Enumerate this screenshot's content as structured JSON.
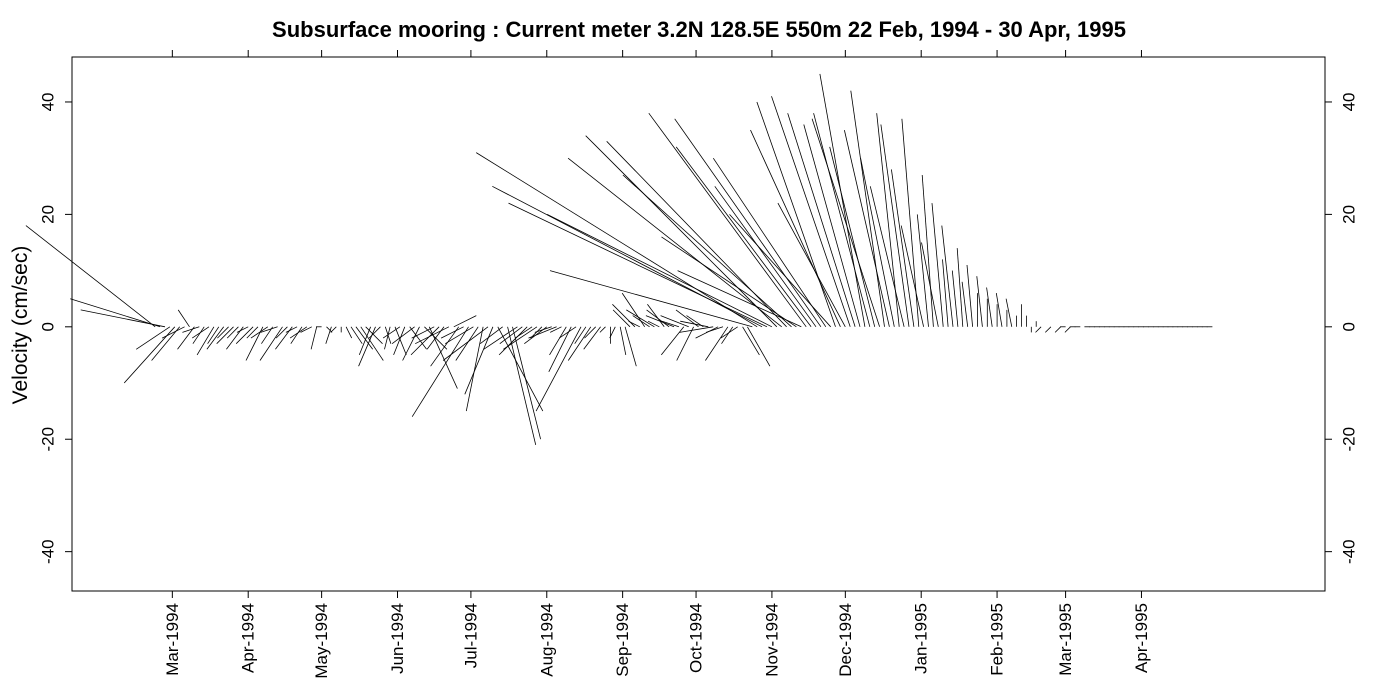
{
  "chart_data": {
    "type": "stick",
    "title": "Subsurface mooring : Current meter  3.2N 128.5E    550m  22 Feb, 1994 - 30 Apr, 1995",
    "ylabel": "Velocity (cm/sec)",
    "xlabel": "",
    "ylim": [
      -47,
      48
    ],
    "xlim": [
      "1994-01-19",
      "1995-06-15"
    ],
    "grid": false,
    "legend": "none",
    "y_ticks": [
      -40,
      -20,
      0,
      20,
      40
    ],
    "y_tick_labels": [
      "-40",
      "-20",
      "0",
      "20",
      "40"
    ],
    "x_ticks": [
      "1994-03-01",
      "1994-04-01",
      "1994-05-01",
      "1994-06-01",
      "1994-07-01",
      "1994-08-01",
      "1994-09-01",
      "1994-10-01",
      "1994-11-01",
      "1994-12-01",
      "1995-01-01",
      "1995-02-01",
      "1995-03-01",
      "1995-04-01"
    ],
    "x_tick_labels": [
      "Mar-1994",
      "Apr-1994",
      "May-1994",
      "Jun-1994",
      "Jul-1994",
      "Aug-1994",
      "Sep-1994",
      "Oct-1994",
      "Nov-1994",
      "Dec-1994",
      "Jan-1995",
      "Feb-1995",
      "Mar-1995",
      "Apr-1995"
    ],
    "x_label_angle": -90,
    "color": "#000000",
    "vectors": [
      {
        "date": "1994-02-22",
        "u": -23,
        "v": 18
      },
      {
        "date": "1994-02-24",
        "u": -16,
        "v": 5
      },
      {
        "date": "1994-02-26",
        "u": -15,
        "v": 3
      },
      {
        "date": "1994-02-28",
        "u": -6,
        "v": -4
      },
      {
        "date": "1994-03-02",
        "u": -9,
        "v": -10
      },
      {
        "date": "1994-03-04",
        "u": -5,
        "v": -6
      },
      {
        "date": "1994-03-06",
        "u": -4,
        "v": -2
      },
      {
        "date": "1994-03-08",
        "u": -2,
        "v": 3
      },
      {
        "date": "1994-03-10",
        "u": -3,
        "v": -4
      },
      {
        "date": "1994-03-12",
        "u": -3,
        "v": -1
      },
      {
        "date": "1994-03-14",
        "u": -2,
        "v": -3
      },
      {
        "date": "1994-03-16",
        "u": -3,
        "v": -2
      },
      {
        "date": "1994-03-18",
        "u": -3,
        "v": -5
      },
      {
        "date": "1994-03-20",
        "u": -2,
        "v": -3
      },
      {
        "date": "1994-03-22",
        "u": -3,
        "v": -4
      },
      {
        "date": "1994-03-24",
        "u": -2,
        "v": -2
      },
      {
        "date": "1994-03-26",
        "u": -3,
        "v": -3
      },
      {
        "date": "1994-03-28",
        "u": -2,
        "v": -2
      },
      {
        "date": "1994-03-30",
        "u": -3,
        "v": -4
      },
      {
        "date": "1994-04-01",
        "u": -2,
        "v": -1
      },
      {
        "date": "1994-04-03",
        "u": -3,
        "v": -3
      },
      {
        "date": "1994-04-05",
        "u": -2,
        "v": -2
      },
      {
        "date": "1994-04-07",
        "u": -3,
        "v": -6
      },
      {
        "date": "1994-04-09",
        "u": -3,
        "v": -2
      },
      {
        "date": "1994-04-11",
        "u": -2,
        "v": -3
      },
      {
        "date": "1994-04-13",
        "u": -3,
        "v": -1
      },
      {
        "date": "1994-04-15",
        "u": -4,
        "v": -6
      },
      {
        "date": "1994-04-17",
        "u": -2,
        "v": -2
      },
      {
        "date": "1994-04-19",
        "u": -3,
        "v": -4
      },
      {
        "date": "1994-04-21",
        "u": -2,
        "v": -1
      },
      {
        "date": "1994-04-23",
        "u": -2,
        "v": -3
      },
      {
        "date": "1994-04-25",
        "u": -3,
        "v": -2
      },
      {
        "date": "1994-04-27",
        "u": -2,
        "v": -1
      },
      {
        "date": "1994-04-29",
        "u": -1,
        "v": -4
      },
      {
        "date": "1994-05-01",
        "u": -1,
        "v": 0
      },
      {
        "date": "1994-05-03",
        "u": 1,
        "v": -1
      },
      {
        "date": "1994-05-05",
        "u": -1,
        "v": -3
      },
      {
        "date": "1994-05-07",
        "u": -1,
        "v": -1
      },
      {
        "date": "1994-05-09",
        "u": 0,
        "v": -1
      },
      {
        "date": "1994-05-11",
        "u": 1,
        "v": -2
      },
      {
        "date": "1994-05-13",
        "u": 2,
        "v": -3
      },
      {
        "date": "1994-05-15",
        "u": 3,
        "v": -4
      },
      {
        "date": "1994-05-17",
        "u": 4,
        "v": -6
      },
      {
        "date": "1994-05-19",
        "u": 3,
        "v": -3
      },
      {
        "date": "1994-05-21",
        "u": -2,
        "v": -5
      },
      {
        "date": "1994-05-23",
        "u": -3,
        "v": -7
      },
      {
        "date": "1994-05-25",
        "u": -2,
        "v": -2
      },
      {
        "date": "1994-05-27",
        "u": 1,
        "v": -3
      },
      {
        "date": "1994-05-29",
        "u": -1,
        "v": -4
      },
      {
        "date": "1994-05-31",
        "u": 2,
        "v": -5
      },
      {
        "date": "1994-06-02",
        "u": -3,
        "v": -2
      },
      {
        "date": "1994-06-04",
        "u": -2,
        "v": -5
      },
      {
        "date": "1994-06-06",
        "u": 3,
        "v": -4
      },
      {
        "date": "1994-06-08",
        "u": -4,
        "v": -3
      },
      {
        "date": "1994-06-10",
        "u": -3,
        "v": -6
      },
      {
        "date": "1994-06-12",
        "u": 4,
        "v": -4
      },
      {
        "date": "1994-06-14",
        "u": 5,
        "v": -11
      },
      {
        "date": "1994-06-16",
        "u": -4,
        "v": -2
      },
      {
        "date": "1994-06-18",
        "u": -5,
        "v": -5
      },
      {
        "date": "1994-06-20",
        "u": -3,
        "v": -4
      },
      {
        "date": "1994-06-22",
        "u": -6,
        "v": -3
      },
      {
        "date": "1994-06-24",
        "u": 4,
        "v": 2
      },
      {
        "date": "1994-06-26",
        "u": -5,
        "v": -7
      },
      {
        "date": "1994-06-28",
        "u": -4,
        "v": -2
      },
      {
        "date": "1994-06-30",
        "u": -10,
        "v": -16
      },
      {
        "date": "1994-07-02",
        "u": -5,
        "v": -3
      },
      {
        "date": "1994-07-04",
        "u": -4,
        "v": -6
      },
      {
        "date": "1994-07-06",
        "u": -3,
        "v": -15
      },
      {
        "date": "1994-07-08",
        "u": -8,
        "v": -6
      },
      {
        "date": "1994-07-10",
        "u": -5,
        "v": -12
      },
      {
        "date": "1994-07-12",
        "u": 8,
        "v": -15
      },
      {
        "date": "1994-07-14",
        "u": -4,
        "v": -3
      },
      {
        "date": "1994-07-16",
        "u": 5,
        "v": -21
      },
      {
        "date": "1994-07-18",
        "u": 5,
        "v": -20
      },
      {
        "date": "1994-07-20",
        "u": -6,
        "v": -4
      },
      {
        "date": "1994-07-22",
        "u": -4,
        "v": -3
      },
      {
        "date": "1994-07-24",
        "u": -5,
        "v": -5
      },
      {
        "date": "1994-07-26",
        "u": -3,
        "v": -2
      },
      {
        "date": "1994-07-28",
        "u": -6,
        "v": -4
      },
      {
        "date": "1994-07-30",
        "u": -2,
        "v": -2
      },
      {
        "date": "1994-08-01",
        "u": -4,
        "v": -3
      },
      {
        "date": "1994-08-03",
        "u": -3,
        "v": -1
      },
      {
        "date": "1994-08-05",
        "u": -5,
        "v": -2
      },
      {
        "date": "1994-08-07",
        "u": -2,
        "v": -1
      },
      {
        "date": "1994-08-09",
        "u": -3,
        "v": -5
      },
      {
        "date": "1994-08-11",
        "u": -4,
        "v": -8
      },
      {
        "date": "1994-08-13",
        "u": -3,
        "v": -2
      },
      {
        "date": "1994-08-15",
        "u": -8,
        "v": -15
      },
      {
        "date": "1994-08-17",
        "u": -2,
        "v": -3
      },
      {
        "date": "1994-08-19",
        "u": -4,
        "v": -6
      },
      {
        "date": "1994-08-21",
        "u": -2,
        "v": -2
      },
      {
        "date": "1994-08-23",
        "u": -3,
        "v": -4
      },
      {
        "date": "1994-08-25",
        "u": -1,
        "v": -1
      },
      {
        "date": "1994-08-27",
        "u": 0,
        "v": -3
      },
      {
        "date": "1994-08-29",
        "u": -1,
        "v": -2
      },
      {
        "date": "1994-08-31",
        "u": 1,
        "v": -5
      },
      {
        "date": "1994-09-02",
        "u": 2,
        "v": -7
      },
      {
        "date": "1994-09-04",
        "u": -3,
        "v": 3
      },
      {
        "date": "1994-09-06",
        "u": -4,
        "v": 4
      },
      {
        "date": "1994-09-08",
        "u": -2,
        "v": 1
      },
      {
        "date": "1994-09-10",
        "u": -4,
        "v": 6
      },
      {
        "date": "1994-09-12",
        "u": -3,
        "v": 2
      },
      {
        "date": "1994-09-14",
        "u": -5,
        "v": 3
      },
      {
        "date": "1994-09-16",
        "u": -2,
        "v": 1
      },
      {
        "date": "1994-09-18",
        "u": -3,
        "v": 4
      },
      {
        "date": "1994-09-20",
        "u": -4,
        "v": 3
      },
      {
        "date": "1994-09-22",
        "u": -5,
        "v": 2
      },
      {
        "date": "1994-09-24",
        "u": -3,
        "v": 1
      },
      {
        "date": "1994-09-26",
        "u": -4,
        "v": -5
      },
      {
        "date": "1994-09-28",
        "u": -5,
        "v": 2
      },
      {
        "date": "1994-09-30",
        "u": -3,
        "v": -6
      },
      {
        "date": "1994-10-02",
        "u": -4,
        "v": 3
      },
      {
        "date": "1994-10-04",
        "u": -3,
        "v": 2
      },
      {
        "date": "1994-10-06",
        "u": -5,
        "v": 1
      },
      {
        "date": "1994-10-08",
        "u": -6,
        "v": -1
      },
      {
        "date": "1994-10-10",
        "u": -4,
        "v": -2
      },
      {
        "date": "1994-10-12",
        "u": -3,
        "v": -1
      },
      {
        "date": "1994-10-14",
        "u": -4,
        "v": -6
      },
      {
        "date": "1994-10-16",
        "u": -2,
        "v": -3
      },
      {
        "date": "1994-10-18",
        "u": -3,
        "v": -2
      },
      {
        "date": "1994-10-20",
        "u": 3,
        "v": -5
      },
      {
        "date": "1994-10-22",
        "u": 4,
        "v": -7
      },
      {
        "date": "1994-10-24",
        "u": -36,
        "v": 10
      },
      {
        "date": "1994-10-26",
        "u": -50,
        "v": 31
      },
      {
        "date": "1994-10-28",
        "u": -48,
        "v": 25
      },
      {
        "date": "1994-10-30",
        "u": -46,
        "v": 22
      },
      {
        "date": "1994-11-01",
        "u": -40,
        "v": 20
      },
      {
        "date": "1994-11-03",
        "u": -34,
        "v": 34
      },
      {
        "date": "1994-11-05",
        "u": -38,
        "v": 30
      },
      {
        "date": "1994-11-07",
        "u": -32,
        "v": 33
      },
      {
        "date": "1994-11-09",
        "u": -30,
        "v": 27
      },
      {
        "date": "1994-11-11",
        "u": -24,
        "v": 16
      },
      {
        "date": "1994-11-13",
        "u": -22,
        "v": 10
      },
      {
        "date": "1994-11-15",
        "u": -28,
        "v": 38
      },
      {
        "date": "1994-11-17",
        "u": -24,
        "v": 32
      },
      {
        "date": "1994-11-19",
        "u": -18,
        "v": 25
      },
      {
        "date": "1994-11-21",
        "u": -26,
        "v": 37
      },
      {
        "date": "1994-11-23",
        "u": -20,
        "v": 30
      },
      {
        "date": "1994-11-25",
        "u": -18,
        "v": 20
      },
      {
        "date": "1994-11-27",
        "u": -14,
        "v": 40
      },
      {
        "date": "1994-11-29",
        "u": -16,
        "v": 35
      },
      {
        "date": "1994-12-01",
        "u": -12,
        "v": 22
      },
      {
        "date": "1994-12-03",
        "u": -14,
        "v": 41
      },
      {
        "date": "1994-12-05",
        "u": -12,
        "v": 38
      },
      {
        "date": "1994-12-07",
        "u": -10,
        "v": 36
      },
      {
        "date": "1994-12-09",
        "u": -8,
        "v": 45
      },
      {
        "date": "1994-12-11",
        "u": -10,
        "v": 38
      },
      {
        "date": "1994-12-13",
        "u": -8,
        "v": 32
      },
      {
        "date": "1994-12-15",
        "u": -12,
        "v": 37
      },
      {
        "date": "1994-12-17",
        "u": -6,
        "v": 42
      },
      {
        "date": "1994-12-19",
        "u": -8,
        "v": 35
      },
      {
        "date": "1994-12-21",
        "u": -6,
        "v": 30
      },
      {
        "date": "1994-12-23",
        "u": -4,
        "v": 38
      },
      {
        "date": "1994-12-25",
        "u": -6,
        "v": 25
      },
      {
        "date": "1994-12-27",
        "u": -5,
        "v": 36
      },
      {
        "date": "1994-12-29",
        "u": -4,
        "v": 28
      },
      {
        "date": "1994-12-31",
        "u": -3,
        "v": 37
      },
      {
        "date": "1995-01-02",
        "u": -4,
        "v": 18
      },
      {
        "date": "1995-01-04",
        "u": -2,
        "v": 20
      },
      {
        "date": "1995-01-06",
        "u": -2,
        "v": 27
      },
      {
        "date": "1995-01-08",
        "u": -3,
        "v": 15
      },
      {
        "date": "1995-01-10",
        "u": -2,
        "v": 22
      },
      {
        "date": "1995-01-12",
        "u": -1,
        "v": 12
      },
      {
        "date": "1995-01-14",
        "u": -2,
        "v": 18
      },
      {
        "date": "1995-01-16",
        "u": -1,
        "v": 10
      },
      {
        "date": "1995-01-18",
        "u": -1,
        "v": 14
      },
      {
        "date": "1995-01-20",
        "u": -1,
        "v": 8
      },
      {
        "date": "1995-01-22",
        "u": -1,
        "v": 11
      },
      {
        "date": "1995-01-24",
        "u": 0,
        "v": 6
      },
      {
        "date": "1995-01-26",
        "u": -1,
        "v": 9
      },
      {
        "date": "1995-01-28",
        "u": 0,
        "v": 5
      },
      {
        "date": "1995-01-30",
        "u": -1,
        "v": 7
      },
      {
        "date": "1995-02-01",
        "u": 0,
        "v": 4
      },
      {
        "date": "1995-02-03",
        "u": -1,
        "v": 6
      },
      {
        "date": "1995-02-05",
        "u": 0,
        "v": 3
      },
      {
        "date": "1995-02-07",
        "u": -1,
        "v": 5
      },
      {
        "date": "1995-02-09",
        "u": 0,
        "v": 2
      },
      {
        "date": "1995-02-11",
        "u": 0,
        "v": 4
      },
      {
        "date": "1995-02-13",
        "u": 0,
        "v": 2
      },
      {
        "date": "1995-02-15",
        "u": 0,
        "v": -1
      },
      {
        "date": "1995-02-17",
        "u": 0,
        "v": 1
      },
      {
        "date": "1995-02-19",
        "u": -1,
        "v": -1
      },
      {
        "date": "1995-02-21",
        "u": 0,
        "v": 0
      },
      {
        "date": "1995-02-23",
        "u": -1,
        "v": -1
      },
      {
        "date": "1995-02-25",
        "u": 0,
        "v": 0
      },
      {
        "date": "1995-02-27",
        "u": -1,
        "v": -1
      },
      {
        "date": "1995-03-01",
        "u": -1,
        "v": 0
      },
      {
        "date": "1995-03-03",
        "u": -1,
        "v": -1
      },
      {
        "date": "1995-03-05",
        "u": -1,
        "v": 0
      },
      {
        "date": "1995-03-07",
        "u": -1,
        "v": 0
      },
      {
        "date": "1995-03-09",
        "u": 0,
        "v": 0
      },
      {
        "date": "1995-03-11",
        "u": -1,
        "v": 0
      },
      {
        "date": "1995-03-13",
        "u": -1,
        "v": 0
      },
      {
        "date": "1995-03-15",
        "u": -1,
        "v": 0
      },
      {
        "date": "1995-03-17",
        "u": -1,
        "v": 0
      },
      {
        "date": "1995-03-19",
        "u": -1,
        "v": 0
      },
      {
        "date": "1995-03-21",
        "u": -1,
        "v": 0
      },
      {
        "date": "1995-03-23",
        "u": -1,
        "v": 0
      },
      {
        "date": "1995-03-25",
        "u": -1,
        "v": 0
      },
      {
        "date": "1995-03-27",
        "u": -1,
        "v": 0
      },
      {
        "date": "1995-03-29",
        "u": -1,
        "v": 0
      },
      {
        "date": "1995-03-31",
        "u": -1,
        "v": 0
      },
      {
        "date": "1995-04-02",
        "u": -1,
        "v": 0
      },
      {
        "date": "1995-04-04",
        "u": -1,
        "v": 0
      },
      {
        "date": "1995-04-06",
        "u": -1,
        "v": 0
      },
      {
        "date": "1995-04-08",
        "u": -1,
        "v": 0
      },
      {
        "date": "1995-04-10",
        "u": -1,
        "v": 0
      },
      {
        "date": "1995-04-12",
        "u": -1,
        "v": 0
      },
      {
        "date": "1995-04-14",
        "u": -1,
        "v": 0
      },
      {
        "date": "1995-04-16",
        "u": -1,
        "v": 0
      },
      {
        "date": "1995-04-18",
        "u": -1,
        "v": 0
      },
      {
        "date": "1995-04-20",
        "u": -1,
        "v": 0
      },
      {
        "date": "1995-04-22",
        "u": -1,
        "v": 0
      },
      {
        "date": "1995-04-24",
        "u": -1,
        "v": 0
      },
      {
        "date": "1995-04-26",
        "u": -1,
        "v": 0
      },
      {
        "date": "1995-04-28",
        "u": -1,
        "v": 0
      },
      {
        "date": "1995-04-30",
        "u": -1,
        "v": 0
      }
    ]
  }
}
